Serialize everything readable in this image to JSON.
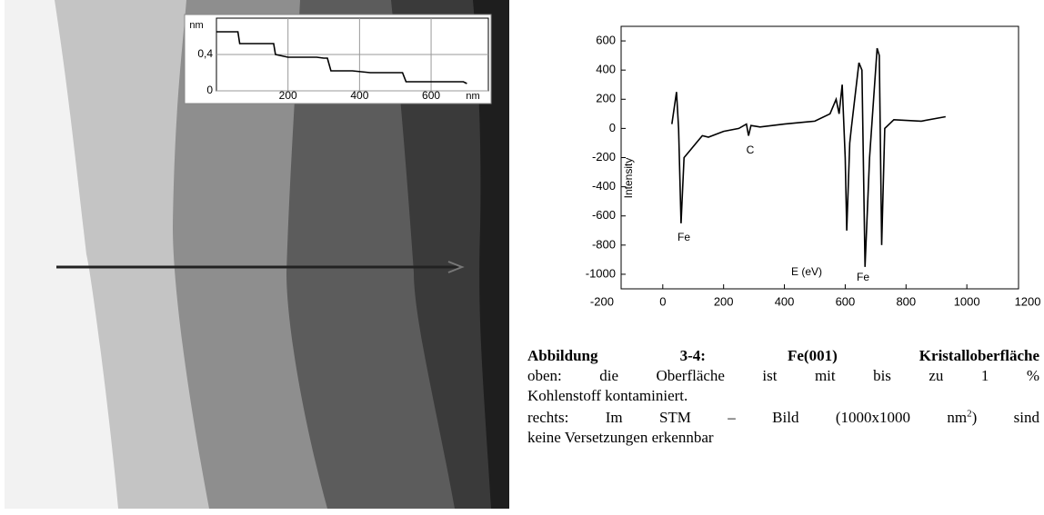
{
  "chart_data": [
    {
      "type": "line",
      "ylabel": "nm",
      "xlabel": "nm",
      "x": [
        0,
        60,
        65,
        160,
        165,
        200,
        280,
        300,
        310,
        320,
        380,
        430,
        520,
        530,
        690,
        700
      ],
      "values": [
        0.65,
        0.65,
        0.52,
        0.52,
        0.4,
        0.37,
        0.37,
        0.36,
        0.36,
        0.22,
        0.22,
        0.2,
        0.2,
        0.1,
        0.1,
        0.08
      ],
      "color": "#000000",
      "xlim": [
        0,
        760
      ],
      "ylim": [
        0,
        0.8
      ],
      "xticks": [
        200,
        400,
        600
      ],
      "yticks": [
        0,
        {
          "value": 0.4,
          "label": "0,4"
        }
      ],
      "grid": true
    },
    {
      "type": "line",
      "ylabel": "Intensity",
      "xlabel": "E (eV)",
      "x": [
        30,
        45,
        52,
        60,
        70,
        90,
        110,
        130,
        150,
        200,
        250,
        275,
        282,
        290,
        320,
        400,
        500,
        550,
        570,
        580,
        590,
        600,
        605,
        615,
        620,
        645,
        655,
        665,
        680,
        690,
        705,
        712,
        720,
        730,
        760,
        850,
        930
      ],
      "values": [
        30,
        250,
        0,
        -650,
        -200,
        -150,
        -100,
        -50,
        -60,
        -20,
        0,
        30,
        -50,
        20,
        10,
        30,
        50,
        100,
        200,
        100,
        300,
        -200,
        -700,
        -100,
        0,
        450,
        400,
        -950,
        -200,
        100,
        550,
        500,
        -800,
        0,
        60,
        50,
        80
      ],
      "color": "#000000",
      "xlim": [
        -137,
        1170
      ],
      "ylim": [
        -1100,
        700
      ],
      "xticks": [
        -200,
        0,
        200,
        400,
        600,
        800,
        1000,
        1200
      ],
      "yticks": [
        -1000,
        -800,
        -600,
        -400,
        -200,
        0,
        200,
        400,
        600
      ],
      "annotations": [
        "Fe",
        "C",
        "Fe"
      ]
    }
  ],
  "caption": {
    "title": "Abbildung 3-4: Fe(001) Kristalloberfläche",
    "lines": [
      "oben: die Oberfläche ist mit bis zu 1 %",
      "Kohlenstoff kontaminiert.",
      [
        "rechts: Im STM – Bild (1000x1000 nm",
        "2",
        ") sind"
      ],
      "keine Versetzungen erkennbar"
    ]
  }
}
